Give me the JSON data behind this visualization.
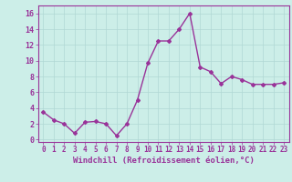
{
  "x": [
    0,
    1,
    2,
    3,
    4,
    5,
    6,
    7,
    8,
    9,
    10,
    11,
    12,
    13,
    14,
    15,
    16,
    17,
    18,
    19,
    20,
    21,
    22,
    23
  ],
  "y": [
    3.5,
    2.5,
    2.0,
    0.8,
    2.2,
    2.3,
    2.0,
    0.5,
    2.0,
    5.0,
    9.7,
    12.5,
    12.5,
    14.0,
    16.0,
    9.2,
    8.6,
    7.1,
    8.0,
    7.6,
    7.0,
    7.0,
    7.0,
    7.2
  ],
  "line_color": "#993399",
  "marker": "D",
  "marker_size": 2.0,
  "linewidth": 1.0,
  "xlabel": "Windchill (Refroidissement éolien,°C)",
  "xlabel_fontsize": 6.5,
  "xtick_fontsize": 5.5,
  "ytick_fontsize": 6.0,
  "xtick_labels": [
    "0",
    "1",
    "2",
    "3",
    "4",
    "5",
    "6",
    "7",
    "8",
    "9",
    "10",
    "11",
    "12",
    "13",
    "14",
    "15",
    "16",
    "17",
    "18",
    "19",
    "20",
    "21",
    "22",
    "23"
  ],
  "ytick_values": [
    0,
    2,
    4,
    6,
    8,
    10,
    12,
    14,
    16
  ],
  "ylim": [
    -0.3,
    17.0
  ],
  "xlim": [
    -0.5,
    23.5
  ],
  "background_color": "#cceee8",
  "grid_color": "#b0d8d4",
  "tick_color": "#993399",
  "label_color": "#993399",
  "spine_color": "#993399",
  "font_family": "monospace"
}
